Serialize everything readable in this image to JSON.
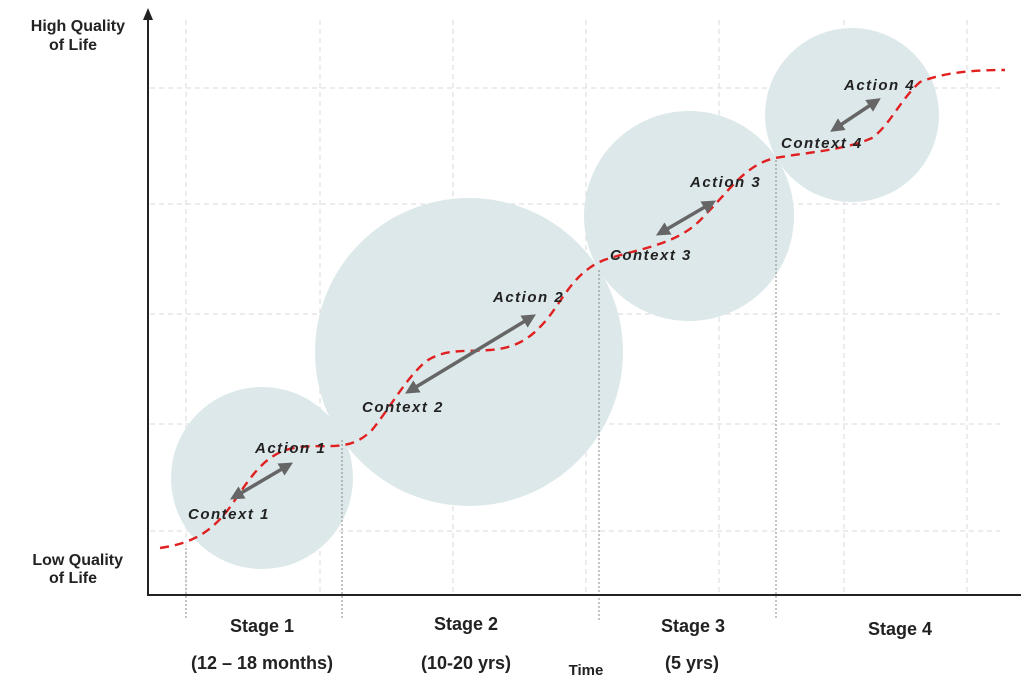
{
  "y_axis": {
    "high_label_line1": "High Quality",
    "high_label_line2": "of Life",
    "low_label_line1": "Low Quality",
    "low_label_line2": "of Life"
  },
  "x_axis": {
    "label": "Time"
  },
  "stages": [
    {
      "name": "Stage 1",
      "duration": "(12 – 18 months)",
      "context": "Context 1",
      "action": "Action 1"
    },
    {
      "name": "Stage 2",
      "duration": "(10-20 yrs)",
      "context": "Context 2",
      "action": "Action 2"
    },
    {
      "name": "Stage 3",
      "duration": "(5 yrs)",
      "context": "Context 3",
      "action": "Action 3"
    },
    {
      "name": "Stage 4",
      "duration": "",
      "context": "Context 4",
      "action": "Action 4"
    }
  ],
  "colors": {
    "circle_fill": "#dde8ea",
    "trajectory": "#e02020",
    "arrow": "#666666",
    "axis": "#222222",
    "grid": "#d8d8d8"
  }
}
